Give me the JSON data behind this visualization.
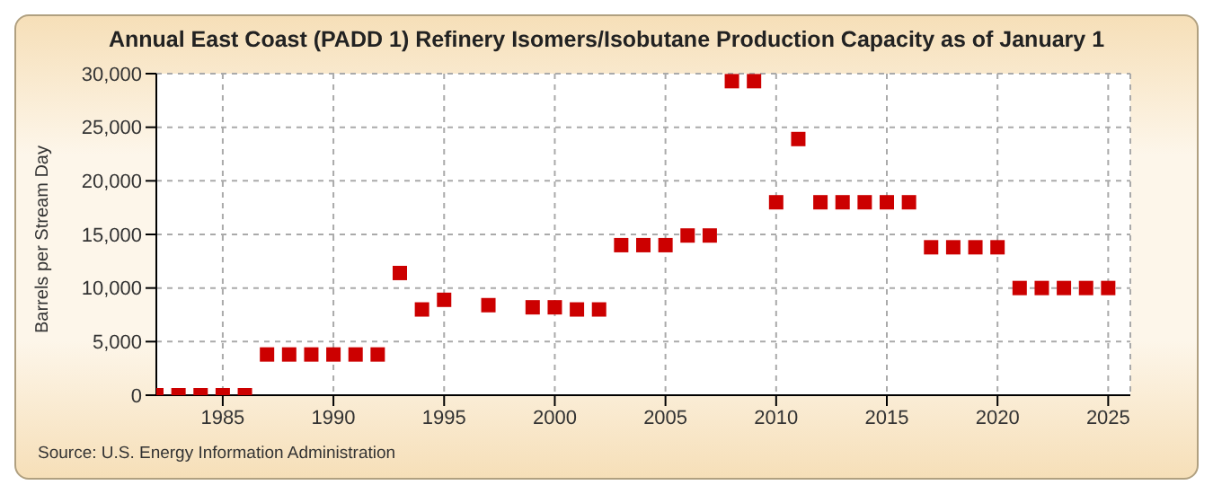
{
  "chart_data": {
    "type": "scatter",
    "title": "Annual East Coast (PADD 1) Refinery Isomers/Isobutane Production Capacity as of January 1",
    "ylabel": "Barrels per Stream Day",
    "annotations": [
      "Source: U.S. Energy Information Administration"
    ],
    "x": [
      1982,
      1983,
      1984,
      1985,
      1986,
      1987,
      1988,
      1989,
      1990,
      1991,
      1992,
      1993,
      1994,
      1995,
      1997,
      1999,
      2000,
      2001,
      2002,
      2003,
      2004,
      2005,
      2006,
      2007,
      2008,
      2009,
      2010,
      2011,
      2012,
      2013,
      2014,
      2015,
      2016,
      2017,
      2018,
      2019,
      2020,
      2021,
      2022,
      2023,
      2024,
      2025
    ],
    "series": [
      {
        "color": "#cc0000",
        "values": [
          0,
          0,
          0,
          0,
          0,
          3800,
          3800,
          3800,
          3800,
          3800,
          3800,
          11400,
          8000,
          8900,
          8400,
          8200,
          8200,
          8000,
          8000,
          14000,
          14000,
          14000,
          14900,
          14900,
          29300,
          29300,
          18000,
          23900,
          18000,
          18000,
          18000,
          18000,
          18000,
          13800,
          13800,
          13800,
          13800,
          10000,
          10000,
          10000,
          10000,
          10000
        ]
      }
    ],
    "xlim": [
      1982,
      2026
    ],
    "xticks": [
      1985,
      1990,
      1995,
      2000,
      2005,
      2010,
      2015,
      2020,
      2025
    ],
    "ylim": [
      0,
      30000
    ],
    "yticks": [
      0,
      {
        "value": 5000,
        "label": "5,000"
      },
      {
        "value": 10000,
        "label": "10,000"
      },
      {
        "value": 15000,
        "label": "15,000"
      },
      {
        "value": 20000,
        "label": "20,000"
      },
      {
        "value": 25000,
        "label": "25,000"
      },
      {
        "value": 30000,
        "label": "30,000"
      }
    ],
    "grid": true,
    "marker": "square"
  }
}
